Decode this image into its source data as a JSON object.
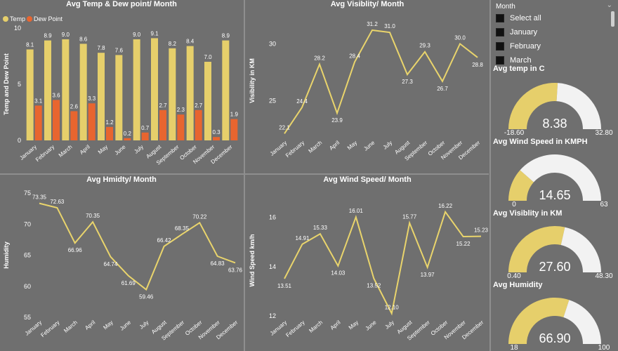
{
  "colors": {
    "bg": "#6f6f6f",
    "temp": "#e6cf6b",
    "dew": "#e8652f",
    "line": "#e9d46c",
    "gauge_fill": "#e6cf6b",
    "gauge_bg": "#f2f2f2"
  },
  "charts": {
    "temp_dew": {
      "title": "Avg Temp & Dew point/ Month",
      "legend": {
        "temp": "Temp",
        "dew": "Dew Point"
      },
      "ylabel": "Temp and Dew Point",
      "yticks": [
        "0",
        "5",
        "10"
      ]
    },
    "visibility": {
      "title": "Avg Visiblity/ Month",
      "ylabel": "Visibility in KM",
      "yticks": [
        "25",
        "30"
      ]
    },
    "humidity": {
      "title": "Avg Hmidty/ Month",
      "ylabel": "Humidity",
      "yticks": [
        "55",
        "60",
        "65",
        "70",
        "75"
      ]
    },
    "wind": {
      "title": "Avg Wind Speed/ Month",
      "ylabel": "Wind Speed km/h",
      "yticks": [
        "12",
        "14",
        "16"
      ]
    }
  },
  "slicer": {
    "title": "Month",
    "items": [
      "Select all",
      "January",
      "February",
      "March"
    ]
  },
  "gauges": [
    {
      "title": "Avg temp in C",
      "value": "8.38",
      "min": "-18.60",
      "max": "32.80",
      "fraction": 0.52
    },
    {
      "title": "Avg Wind Speed in KMPH",
      "value": "14.65",
      "min": "0",
      "max": "63",
      "fraction": 0.23
    },
    {
      "title": "Avg Visiblity in KM",
      "value": "27.60",
      "min": "0.40",
      "max": "48.30",
      "fraction": 0.57
    },
    {
      "title": "Avg Humidity",
      "value": "66.90",
      "min": "18",
      "max": "100",
      "fraction": 0.6
    }
  ],
  "chart_data": [
    {
      "type": "bar",
      "title": "Avg Temp & Dew point/ Month",
      "ylabel": "Temp and Dew Point",
      "ylim": [
        0,
        10
      ],
      "legend": "top-left",
      "categories": [
        "January",
        "February",
        "March",
        "April",
        "May",
        "June",
        "July",
        "August",
        "September",
        "October",
        "November",
        "December"
      ],
      "series": [
        {
          "name": "Temp",
          "values": [
            8.1,
            8.9,
            9.0,
            8.6,
            7.8,
            7.6,
            9.0,
            9.1,
            8.2,
            8.4,
            7.0,
            8.9
          ]
        },
        {
          "name": "Dew Point",
          "values": [
            3.1,
            3.6,
            2.6,
            3.3,
            1.2,
            0.2,
            0.7,
            2.7,
            2.3,
            2.7,
            0.3,
            1.9
          ]
        }
      ]
    },
    {
      "type": "line",
      "title": "Avg Visiblity/ Month",
      "ylabel": "Visibility in KM",
      "ylim": [
        21.5,
        32
      ],
      "categories": [
        "January",
        "February",
        "March",
        "April",
        "May",
        "June",
        "July",
        "August",
        "September",
        "October",
        "November",
        "December"
      ],
      "values": [
        22.1,
        24.4,
        28.2,
        23.9,
        28.4,
        31.2,
        31.0,
        27.3,
        29.3,
        26.7,
        30.0,
        28.8
      ],
      "labels": [
        "22.1",
        "24.4",
        "28.2",
        "23.9",
        "28.4",
        "31.2",
        "31.0",
        "27.3",
        "29.3",
        "26.7",
        "30.0",
        "28.8"
      ]
    },
    {
      "type": "line",
      "title": "Avg Hmidty/ Month",
      "ylabel": "Humidity",
      "ylim": [
        55,
        75
      ],
      "categories": [
        "January",
        "February",
        "March",
        "April",
        "May",
        "June",
        "July",
        "August",
        "September",
        "October",
        "November",
        "December"
      ],
      "values": [
        73.35,
        72.63,
        66.96,
        70.35,
        64.74,
        61.69,
        59.46,
        66.42,
        68.35,
        70.22,
        64.83,
        63.76
      ],
      "labels": [
        "73.35",
        "72.63",
        "66.96",
        "70.35",
        "64.74",
        "61.69",
        "59.46",
        "66.42",
        "68.35",
        "70.22",
        "64.83",
        "63.76"
      ]
    },
    {
      "type": "line",
      "title": "Avg Wind Speed/ Month",
      "ylabel": "Wind Speed km/h",
      "ylim": [
        12,
        16.5
      ],
      "categories": [
        "January",
        "February",
        "March",
        "April",
        "May",
        "June",
        "July",
        "August",
        "September",
        "October",
        "November",
        "December"
      ],
      "values": [
        13.51,
        14.91,
        15.33,
        14.03,
        16.01,
        13.52,
        12.1,
        15.77,
        13.97,
        16.22,
        15.22,
        15.23
      ],
      "labels": [
        "13.51",
        "14.91",
        "15.33",
        "14.03",
        "16.01",
        "13.52",
        "12.10",
        "15.77",
        "13.97",
        "16.22",
        "15.22",
        "15.23"
      ]
    }
  ]
}
